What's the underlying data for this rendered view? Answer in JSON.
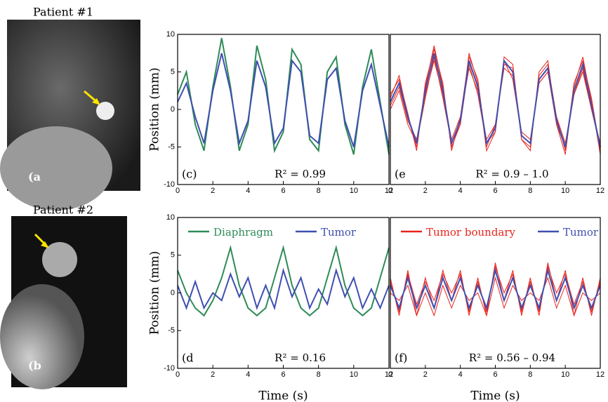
{
  "images": [
    {
      "title": "Patient #1",
      "label": "(a"
    },
    {
      "title": "Patient #2",
      "label": "(b"
    }
  ],
  "chart_data": [
    {
      "type": "line",
      "panel": "(c)",
      "annotation": "R² = 0.99",
      "ylabel": "Position (mm)",
      "x": [
        0,
        0.5,
        1,
        1.5,
        2,
        2.5,
        3,
        3.5,
        4,
        4.5,
        5,
        5.5,
        6,
        6.5,
        7,
        7.5,
        8,
        8.5,
        9,
        9.5,
        10,
        10.5,
        11,
        11.5,
        12
      ],
      "series": [
        {
          "color": "#2e8b57",
          "values": [
            2,
            5,
            -2,
            -5.5,
            3,
            9.5,
            3,
            -5.5,
            -2,
            8.5,
            4,
            -5.5,
            -3,
            8,
            6,
            -4,
            -5.5,
            5,
            7,
            -2,
            -6,
            3,
            8,
            1,
            -6
          ]
        },
        {
          "color": "#3f4fb0",
          "values": [
            1,
            3.5,
            -1,
            -4.5,
            2.5,
            7.5,
            2.5,
            -4.5,
            -1.5,
            6.5,
            3,
            -4.5,
            -2.5,
            6.5,
            5,
            -3.5,
            -4.5,
            4,
            5.5,
            -1.5,
            -5,
            2.5,
            6,
            0.5,
            -5
          ]
        }
      ],
      "xlim": [
        0,
        12
      ],
      "ylim": [
        -10,
        10
      ],
      "xticks": [
        0,
        2,
        4,
        6,
        8,
        10,
        12
      ],
      "yticks": [
        -10,
        -5,
        0,
        5,
        10
      ]
    },
    {
      "type": "line",
      "panel": "(e",
      "annotation": "R² = 0.9 – 1.0",
      "x": [
        0,
        0.5,
        1,
        1.5,
        2,
        2.5,
        3,
        3.5,
        4,
        4.5,
        5,
        5.5,
        6,
        6.5,
        7,
        7.5,
        8,
        8.5,
        9,
        9.5,
        10,
        10.5,
        11,
        11.5,
        12
      ],
      "series": [
        {
          "color": "#e8231c",
          "values": [
            1.5,
            4.5,
            -1,
            -5,
            3,
            8.5,
            3,
            -5,
            -2,
            7.5,
            3.5,
            -5.5,
            -3,
            7,
            6,
            -4,
            -5.5,
            5,
            6.5,
            -2,
            -6,
            3,
            7,
            1,
            -6
          ]
        },
        {
          "color": "#e8231c",
          "values": [
            0.5,
            3,
            -1.5,
            -4,
            2,
            6.5,
            2,
            -4,
            -1,
            5.5,
            2.5,
            -4,
            -2,
            5.5,
            4.5,
            -3,
            -4,
            3.5,
            5,
            -1,
            -4.5,
            2,
            5,
            0,
            -4.5
          ]
        },
        {
          "color": "#e8231c",
          "values": [
            2,
            4,
            -0.5,
            -5.5,
            3.5,
            8,
            3.5,
            -5.5,
            -1,
            7,
            4,
            -5,
            -2,
            6,
            5.5,
            -4,
            -5,
            4.5,
            6,
            -1,
            -5.5,
            3.5,
            6.5,
            1.5,
            -5.5
          ]
        },
        {
          "color": "#e8231c",
          "values": [
            0,
            2.5,
            -2,
            -4.5,
            1.5,
            7,
            1.5,
            -4.5,
            -2,
            6,
            2,
            -4.5,
            -3,
            6.5,
            4,
            -3.5,
            -4.5,
            3.5,
            5,
            -2,
            -5,
            2,
            5.5,
            0,
            -5
          ]
        },
        {
          "color": "#3f4fb0",
          "values": [
            1,
            3.5,
            -1,
            -4.5,
            2.5,
            7.5,
            2.5,
            -4.5,
            -1.5,
            6.5,
            3,
            -4.5,
            -2.5,
            6.5,
            5,
            -3.5,
            -4.5,
            4,
            5.5,
            -1.5,
            -5,
            2.5,
            6,
            0.5,
            -5
          ]
        }
      ],
      "xlim": [
        0,
        12
      ],
      "ylim": [
        -10,
        10
      ],
      "xticks": [
        0,
        2,
        4,
        6,
        8,
        10,
        12
      ]
    },
    {
      "type": "line",
      "panel": "(d",
      "annotation": "R² = 0.16",
      "ylabel": "Position (mm)",
      "xlabel": "Time (s)",
      "x": [
        0,
        0.5,
        1,
        1.5,
        2,
        2.5,
        3,
        3.5,
        4,
        4.5,
        5,
        5.5,
        6,
        6.5,
        7,
        7.5,
        8,
        8.5,
        9,
        9.5,
        10,
        10.5,
        11,
        11.5,
        12
      ],
      "series": [
        {
          "name": "Diaphragm",
          "color": "#2e8b57",
          "values": [
            3,
            0,
            -2,
            -3,
            -1,
            2,
            6,
            1,
            -2,
            -3,
            -2,
            2,
            6,
            1,
            -2,
            -3,
            -2,
            2,
            6,
            1,
            -2,
            -3,
            -2,
            2,
            6
          ]
        },
        {
          "name": "Tumor",
          "color": "#3f4fb0",
          "values": [
            1,
            -2,
            1.5,
            -2,
            0,
            -1,
            2.5,
            -0.5,
            2,
            -2,
            1,
            -2,
            3,
            -0.5,
            2,
            -2,
            0.5,
            -1.5,
            3,
            -0.5,
            2,
            -2,
            0.5,
            -2,
            1
          ]
        }
      ],
      "xlim": [
        0,
        12
      ],
      "ylim": [
        -10,
        10
      ],
      "xticks": [
        0,
        2,
        4,
        6,
        8,
        10,
        12
      ],
      "yticks": [
        -10,
        -5,
        0,
        5,
        10
      ],
      "legend": "top"
    },
    {
      "type": "line",
      "panel": "(f)",
      "annotation": "R² = 0.56 – 0.94",
      "xlabel": "Time (s)",
      "x": [
        0,
        0.5,
        1,
        1.5,
        2,
        2.5,
        3,
        3.5,
        4,
        4.5,
        5,
        5.5,
        6,
        6.5,
        7,
        7.5,
        8,
        8.5,
        9,
        9.5,
        10,
        10.5,
        11,
        11.5,
        12
      ],
      "series": [
        {
          "name": "Tumor boundary",
          "color": "#e8231c",
          "values": [
            1.5,
            -2.5,
            2.5,
            -1.5,
            1.5,
            -1,
            2.5,
            0,
            2.5,
            -2.5,
            1.5,
            -2.5,
            3.5,
            0,
            2.5,
            -2.5,
            1.5,
            -2.5,
            3.5,
            0,
            2.5,
            -1.5,
            1.5,
            -2.5,
            1.5
          ]
        },
        {
          "color": "#e8231c",
          "values": [
            2,
            -3,
            3,
            -3,
            2,
            -2,
            3,
            -1,
            3,
            -3,
            2,
            -3,
            4,
            -1,
            3,
            -3,
            2,
            -3,
            4,
            -1,
            3,
            -3,
            2,
            -3,
            2
          ]
        },
        {
          "color": "#e8231c",
          "values": [
            0,
            -1,
            1,
            -3,
            0,
            -3,
            1,
            -2,
            1,
            -1,
            0,
            -3,
            2,
            -2,
            1,
            -1,
            0,
            -1,
            2,
            -2,
            1,
            -3,
            0,
            -1,
            0
          ]
        },
        {
          "name": "Tumor",
          "color": "#3f4fb0",
          "values": [
            1,
            -2,
            2,
            -2,
            1,
            -2,
            2,
            -1,
            2,
            -2,
            1,
            -2,
            3,
            -1,
            2,
            -2,
            1,
            -2,
            3,
            -1,
            2,
            -2,
            1,
            -2,
            1
          ]
        }
      ],
      "xlim": [
        0,
        12
      ],
      "ylim": [
        -10,
        10
      ],
      "xticks": [
        0,
        2,
        4,
        6,
        8,
        10,
        12
      ],
      "legend": "top"
    }
  ]
}
